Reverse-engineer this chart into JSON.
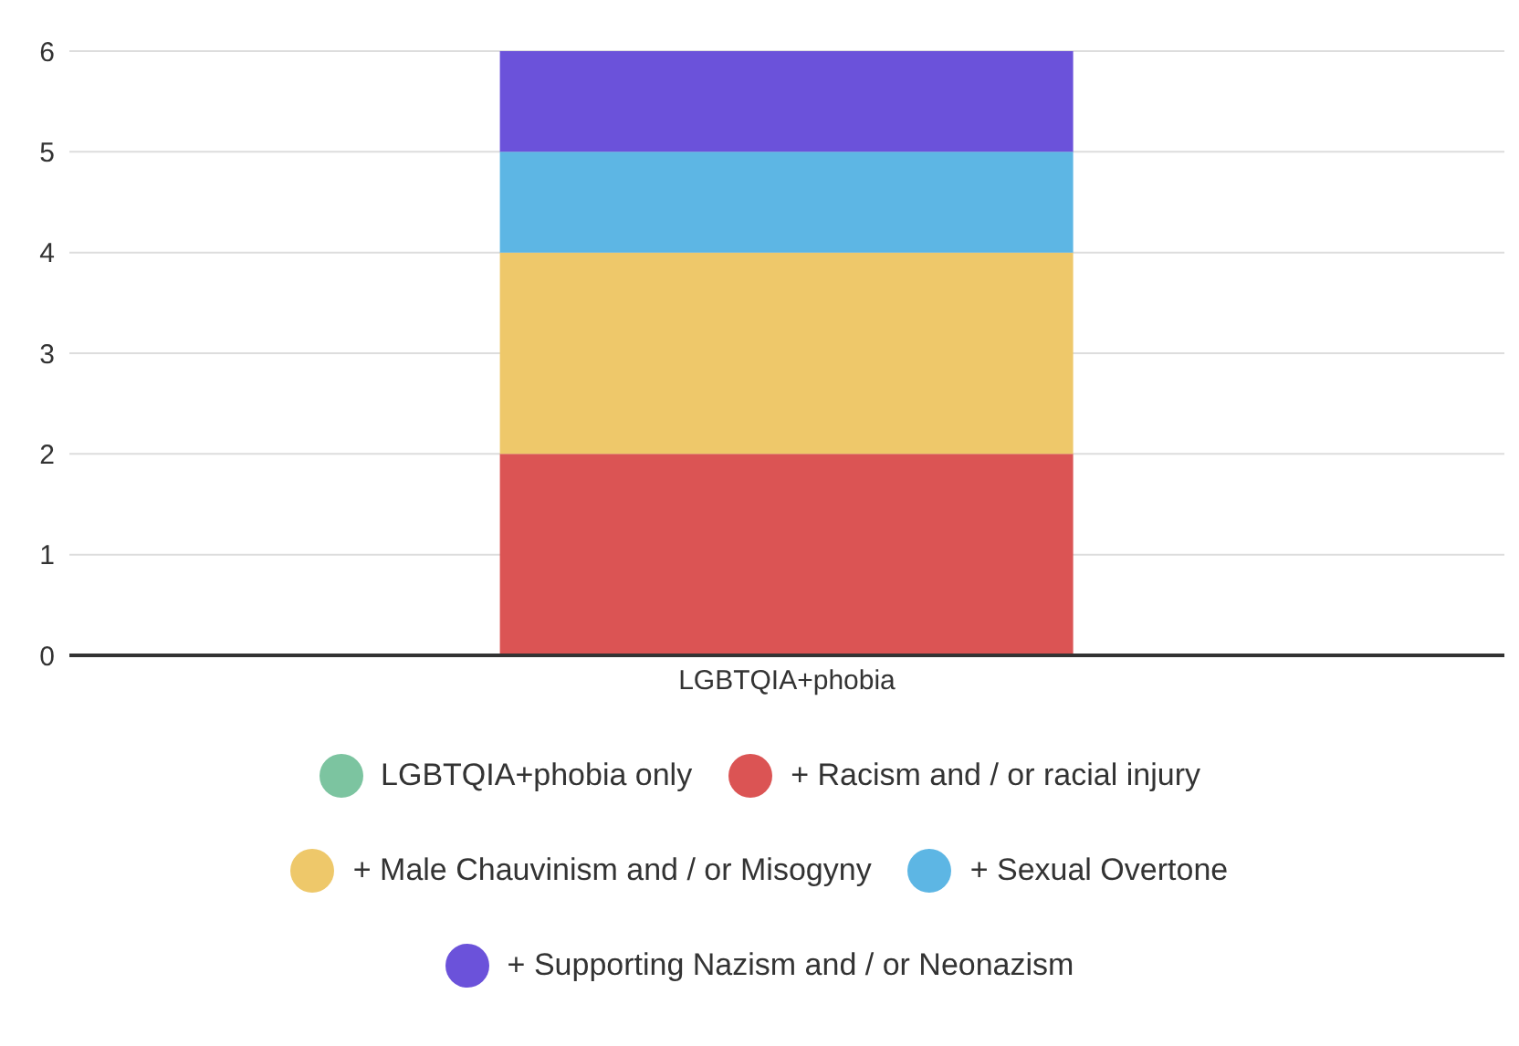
{
  "chart_data": {
    "type": "bar",
    "stacked": true,
    "categories": [
      "LGBTQIA+phobia"
    ],
    "series": [
      {
        "name": "LGBTQIA+phobia only",
        "color": "#7cc4a0",
        "values": [
          0
        ]
      },
      {
        "name": "+ Racism and / or racial injury",
        "color": "#db5454",
        "values": [
          2
        ]
      },
      {
        "name": "+ Male Chauvinism and / or Misogyny",
        "color": "#eec86a",
        "values": [
          2
        ]
      },
      {
        "name": "+ Sexual Overtone",
        "color": "#5db6e4",
        "values": [
          1
        ]
      },
      {
        "name": "+ Supporting Nazism and / or Neonazism",
        "color": "#6b52da",
        "values": [
          1
        ]
      }
    ],
    "ylim": [
      0,
      6
    ],
    "yticks": [
      0,
      1,
      2,
      3,
      4,
      5,
      6
    ],
    "grid": "y",
    "legend": "bottom"
  }
}
